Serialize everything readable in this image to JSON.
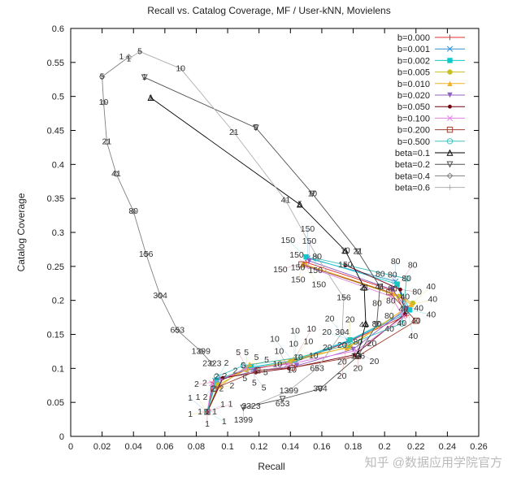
{
  "chart_data": {
    "type": "line",
    "title": "Recall vs. Catalog Coverage, MF / User-kNN, Movielens",
    "xlabel": "Recall",
    "ylabel": "Catalog Coverage",
    "xlim": [
      0,
      0.26
    ],
    "ylim": [
      0,
      0.6
    ],
    "xticks": [
      "0",
      "0.02",
      "0.04",
      "0.06",
      "0.08",
      "0.1",
      "0.12",
      "0.14",
      "0.16",
      "0.18",
      "0.2",
      "0.22",
      "0.24",
      "0.26"
    ],
    "yticks": [
      "0",
      "0.05",
      "0.1",
      "0.15",
      "0.2",
      "0.25",
      "0.3",
      "0.35",
      "0.4",
      "0.45",
      "0.5",
      "0.55",
      "0.6"
    ],
    "grid": false,
    "legend_position": "top-right",
    "series": [
      {
        "name": "b=0.000",
        "color": "#e03030",
        "marker": "plus",
        "labels": [
          "1",
          "2",
          "5",
          "10",
          "20",
          "40",
          "80",
          "150"
        ],
        "x": [
          0.087,
          0.091,
          0.113,
          0.141,
          0.176,
          0.214,
          0.206,
          0.15
        ],
        "y": [
          0.036,
          0.08,
          0.098,
          0.108,
          0.138,
          0.178,
          0.214,
          0.256
        ]
      },
      {
        "name": "b=0.001",
        "color": "#2f8fd0",
        "marker": "x",
        "labels": [
          "1",
          "2",
          "5",
          "10",
          "20",
          "40",
          "80",
          "150"
        ],
        "x": [
          0.087,
          0.092,
          0.114,
          0.142,
          0.177,
          0.215,
          0.207,
          0.151
        ],
        "y": [
          0.036,
          0.082,
          0.1,
          0.11,
          0.14,
          0.182,
          0.228,
          0.262
        ]
      },
      {
        "name": "b=0.002",
        "color": "#10c8c8",
        "marker": "square",
        "labels": [
          "1",
          "2",
          "5",
          "10",
          "20",
          "40",
          "80",
          "150"
        ],
        "x": [
          0.087,
          0.093,
          0.115,
          0.143,
          0.178,
          0.216,
          0.208,
          0.15
        ],
        "y": [
          0.036,
          0.083,
          0.102,
          0.112,
          0.142,
          0.186,
          0.224,
          0.264
        ]
      },
      {
        "name": "b=0.005",
        "color": "#c8c020",
        "marker": "circle",
        "labels": [
          "1",
          "2",
          "5",
          "10",
          "20",
          "40",
          "80",
          "150"
        ],
        "x": [
          0.087,
          0.094,
          0.112,
          0.14,
          0.178,
          0.218,
          0.209,
          0.149
        ],
        "y": [
          0.036,
          0.076,
          0.098,
          0.11,
          0.132,
          0.196,
          0.206,
          0.252
        ]
      },
      {
        "name": "b=0.010",
        "color": "#f0b020",
        "marker": "triangle",
        "labels": [
          "1",
          "2",
          "5",
          "10",
          "20",
          "40",
          "80",
          "150"
        ],
        "x": [
          0.087,
          0.095,
          0.114,
          0.142,
          0.176,
          0.217,
          0.206,
          0.148
        ],
        "y": [
          0.036,
          0.074,
          0.106,
          0.114,
          0.13,
          0.194,
          0.21,
          0.254
        ]
      },
      {
        "name": "b=0.020",
        "color": "#9060c0",
        "marker": "tri-down",
        "labels": [
          "1",
          "2",
          "5",
          "10",
          "20",
          "40",
          "80",
          "150"
        ],
        "x": [
          0.087,
          0.096,
          0.117,
          0.144,
          0.18,
          0.214,
          0.205,
          0.152
        ],
        "y": [
          0.036,
          0.084,
          0.096,
          0.104,
          0.128,
          0.188,
          0.216,
          0.258
        ]
      },
      {
        "name": "b=0.050",
        "color": "#700010",
        "marker": "dot",
        "labels": [
          "1",
          "2",
          "5",
          "10",
          "20",
          "40",
          "80",
          "150"
        ],
        "x": [
          0.087,
          0.097,
          0.118,
          0.139,
          0.181,
          0.213,
          0.21,
          0.175
        ],
        "y": [
          0.036,
          0.086,
          0.094,
          0.1,
          0.12,
          0.18,
          0.216,
          0.252
        ]
      },
      {
        "name": "b=0.100",
        "color": "#e080e0",
        "marker": "x",
        "labels": [
          "1",
          "2",
          "5",
          "10",
          "20",
          "40",
          "80",
          "150"
        ],
        "x": [
          0.087,
          0.09,
          0.111,
          0.138,
          0.182,
          0.212,
          0.204,
          0.15
        ],
        "y": [
          0.036,
          0.078,
          0.099,
          0.106,
          0.126,
          0.176,
          0.206,
          0.25
        ]
      },
      {
        "name": "b=0.200",
        "color": "#a04030",
        "marker": "square-open",
        "labels": [
          "1",
          "2",
          "5",
          "10",
          "20",
          "40",
          "80",
          "150"
        ],
        "x": [
          0.087,
          0.091,
          0.119,
          0.141,
          0.183,
          0.22,
          0.203,
          0.147
        ],
        "y": [
          0.036,
          0.07,
          0.097,
          0.101,
          0.118,
          0.17,
          0.212,
          0.253
        ]
      },
      {
        "name": "b=0.500",
        "color": "#40c0c0",
        "marker": "circle-open",
        "labels": [
          "1",
          "2",
          "5",
          "10",
          "20",
          "40",
          "80",
          "150"
        ],
        "x": [
          0.087,
          0.093,
          0.11,
          0.145,
          0.176,
          0.211,
          0.214,
          0.156
        ],
        "y": [
          0.036,
          0.088,
          0.104,
          0.116,
          0.134,
          0.166,
          0.232,
          0.262
        ]
      },
      {
        "name": "beta=0.1",
        "color": "#000000",
        "marker": "triangle-open",
        "labels": [
          "1",
          "5",
          "10",
          "21",
          "41",
          "80"
        ],
        "x": [
          0.051,
          0.146,
          0.175,
          0.187,
          0.188,
          0.183
        ],
        "y": [
          0.498,
          0.341,
          0.273,
          0.219,
          0.166,
          0.121
        ]
      },
      {
        "name": "beta=0.2",
        "color": "#505050",
        "marker": "tri-down-open",
        "labels": [
          "1",
          "5",
          "10",
          "21",
          "41",
          "80",
          "156",
          "304",
          "653",
          "1399"
        ],
        "x": [
          0.047,
          0.118,
          0.154,
          0.183,
          0.197,
          0.195,
          0.183,
          0.159,
          0.135,
          0.11
        ],
        "y": [
          0.528,
          0.454,
          0.357,
          0.272,
          0.22,
          0.165,
          0.118,
          0.07,
          0.055,
          0.042
        ]
      },
      {
        "name": "beta=0.4",
        "color": "#808080",
        "marker": "diamond",
        "labels": [
          "1",
          "5",
          "10",
          "21",
          "41",
          "80",
          "156",
          "304",
          "653",
          "1399",
          "2323"
        ],
        "x": [
          0.037,
          0.02,
          0.021,
          0.023,
          0.029,
          0.04,
          0.048,
          0.057,
          0.068,
          0.083,
          0.09
        ],
        "y": [
          0.558,
          0.529,
          0.491,
          0.433,
          0.386,
          0.331,
          0.268,
          0.207,
          0.156,
          0.125,
          0.107
        ]
      },
      {
        "name": "beta=0.6",
        "color": "#b0b0b0",
        "marker": "plus",
        "labels": [
          "1",
          "5",
          "10",
          "21",
          "41",
          "80",
          "156",
          "304",
          "653",
          "1399",
          "2323"
        ],
        "x": [
          0.037,
          0.044,
          0.07,
          0.104,
          0.137,
          0.157,
          0.174,
          0.173,
          0.157,
          0.139,
          0.115
        ],
        "y": [
          0.555,
          0.566,
          0.541,
          0.447,
          0.347,
          0.264,
          0.204,
          0.153,
          0.1,
          0.067,
          0.044
        ]
      }
    ]
  },
  "watermark": "知乎 @数据应用学院官方"
}
